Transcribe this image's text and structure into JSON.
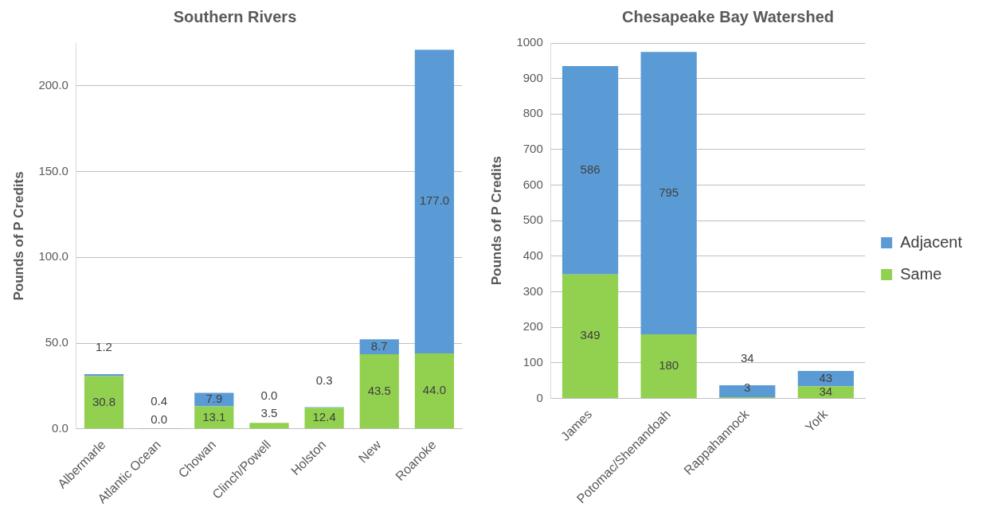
{
  "chart_data": [
    {
      "type": "bar",
      "title": "Southern Rivers",
      "ylabel": "Pounds of P Credits",
      "stacked": true,
      "categories": [
        "Albermarle",
        "Atlantic Ocean",
        "Chowan",
        "Clinch/Powell",
        "Holston",
        "New",
        "Roanoke"
      ],
      "series": [
        {
          "color": "#92d050",
          "values": [
            30.8,
            0.0,
            13.1,
            3.5,
            12.4,
            43.5,
            44.0
          ],
          "value_labels": [
            "30.8",
            "0.0",
            "13.1",
            "3.5",
            "12.4",
            "43.5",
            "44.0"
          ]
        },
        {
          "color": "#5b9bd5",
          "values": [
            1.2,
            0.4,
            7.9,
            0.0,
            0.3,
            8.7,
            177.0
          ],
          "value_labels": [
            "1.2",
            "0.4",
            "7.9",
            "0.0",
            "0.3",
            "8.7",
            "177.0"
          ]
        }
      ],
      "ylim": [
        0,
        225
      ],
      "yticks": [
        {
          "value": 0,
          "label": "0.0"
        },
        {
          "value": 50,
          "label": "50.0"
        },
        {
          "value": 100,
          "label": "100.0"
        },
        {
          "value": 150,
          "label": "150.0"
        },
        {
          "value": 200,
          "label": "200.0"
        }
      ],
      "grid": "y",
      "legend": false
    },
    {
      "type": "bar",
      "title": "Chesapeake Bay Watershed",
      "ylabel": "Pounds of P Credits",
      "stacked": true,
      "categories": [
        "James",
        "Potomac/Shenandoah",
        "Rappahannock",
        "York"
      ],
      "series": [
        {
          "name": "Same",
          "color": "#92d050",
          "values": [
            349,
            180,
            3,
            34
          ]
        },
        {
          "name": "Adjacent",
          "color": "#5b9bd5",
          "values": [
            586,
            795,
            34,
            43
          ]
        }
      ],
      "ylim": [
        0,
        1000
      ],
      "yticks": [
        0,
        100,
        200,
        300,
        400,
        500,
        600,
        700,
        800,
        900,
        1000
      ],
      "grid": "y",
      "data_labels": true,
      "legend": "right"
    }
  ]
}
